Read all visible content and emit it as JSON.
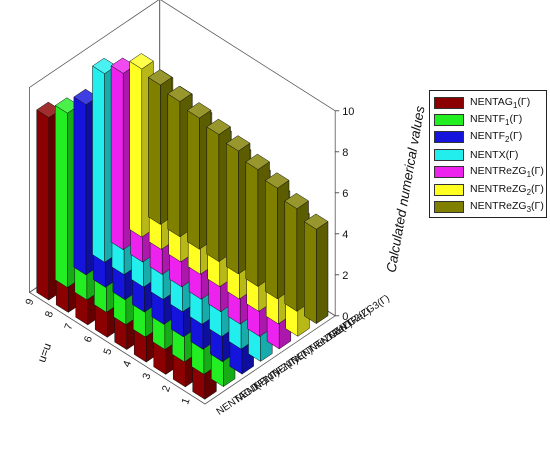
{
  "chart_data": {
    "type": "bar3d",
    "x_title": "u=u",
    "z_title": "Calculated numerical values",
    "x_categories": [
      "1",
      "2",
      "3",
      "4",
      "5",
      "6",
      "7",
      "8",
      "9"
    ],
    "z_ticks": [
      "0",
      "2",
      "4",
      "6",
      "8",
      "10"
    ],
    "zlim": [
      0,
      10
    ],
    "series": [
      {
        "name": "NENTAG1(Γ)",
        "name_main": "NENTAG",
        "name_sub": "1",
        "name_tail": "(Γ)",
        "axis_label": "NENTAG1(Γ)",
        "color": "#8B0000",
        "values": [
          5.5,
          6.1,
          6.6,
          7.1,
          7.6,
          8.0,
          8.3,
          8.6,
          8.9
        ]
      },
      {
        "name": "NENTF1(Γ)",
        "name_main": "NENTF",
        "name_sub": "1",
        "name_tail": "(Γ)",
        "axis_label": "NENTF1(Γ)",
        "color": "#22EE22",
        "values": [
          5.2,
          5.8,
          6.3,
          6.8,
          7.2,
          7.6,
          7.9,
          8.2,
          8.5
        ]
      },
      {
        "name": "NENTF2(Γ)",
        "name_main": "NENTF",
        "name_sub": "2",
        "name_tail": "(Γ)",
        "axis_label": "NENTF2(Γ)",
        "color": "#1414DD",
        "values": [
          5.0,
          5.6,
          6.1,
          6.6,
          7.0,
          7.4,
          7.7,
          8.0,
          8.3
        ]
      },
      {
        "name": "NENTX(Γ)",
        "name_main": "NENTX",
        "name_sub": "",
        "name_tail": "(Γ)",
        "axis_label": "NENTX(Γ)",
        "color": "#22EEEE",
        "values": [
          5.6,
          6.2,
          6.8,
          7.3,
          7.8,
          8.2,
          8.6,
          8.9,
          9.2
        ]
      },
      {
        "name": "NENTReZG1(Γ)",
        "name_main": "NENTReZG",
        "name_sub": "1",
        "name_tail": "(Γ)",
        "axis_label": "NENTReZG1(Γ)",
        "color": "#EE22EE",
        "values": [
          5.3,
          5.9,
          6.4,
          6.9,
          7.3,
          7.7,
          8.0,
          8.3,
          8.6
        ]
      },
      {
        "name": "NENTReZG2(Γ)",
        "name_main": "NENTReZG",
        "name_sub": "2",
        "name_tail": "(Γ)",
        "axis_label": "NENTReZG2(Γ)",
        "color": "#FFFF22",
        "values": [
          5.6,
          6.1,
          6.5,
          6.9,
          7.2,
          7.5,
          7.8,
          8.0,
          8.2
        ]
      },
      {
        "name": "NENTReZG3(Γ)",
        "name_main": "NENTReZG",
        "name_sub": "3",
        "name_tail": "(Γ)",
        "axis_label": "NENTReZG3(Γ)",
        "color": "#808000",
        "values": [
          4.6,
          5.0,
          5.4,
          5.7,
          6.0,
          6.2,
          6.4,
          6.6,
          6.8
        ]
      }
    ]
  }
}
